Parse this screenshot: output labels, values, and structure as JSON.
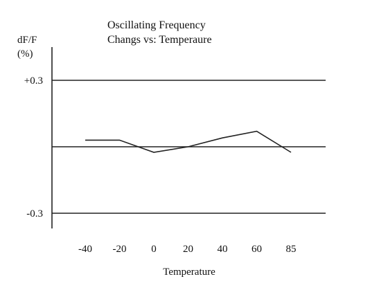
{
  "chart_data": {
    "type": "line",
    "title_lines": [
      "Oscillating Frequency",
      "Changs vs: Temperaure"
    ],
    "xlabel": "Temperature",
    "ylabel_lines": [
      "dF/F",
      "(%)"
    ],
    "categories": [
      "-40",
      "-20",
      "0",
      "20",
      "40",
      "60",
      "85"
    ],
    "values": [
      0.03,
      0.03,
      -0.025,
      0.0,
      0.04,
      0.07,
      -0.025
    ],
    "ylim": [
      -0.45,
      0.45
    ],
    "y_ticks": [
      {
        "value": 0.3,
        "label": "+0.3"
      },
      {
        "value": -0.3,
        "label": "-0.3"
      }
    ],
    "reference_lines": [
      0.3,
      0.0,
      -0.3
    ],
    "grid": false,
    "line_color": "#222222",
    "axis_color": "#222222"
  }
}
